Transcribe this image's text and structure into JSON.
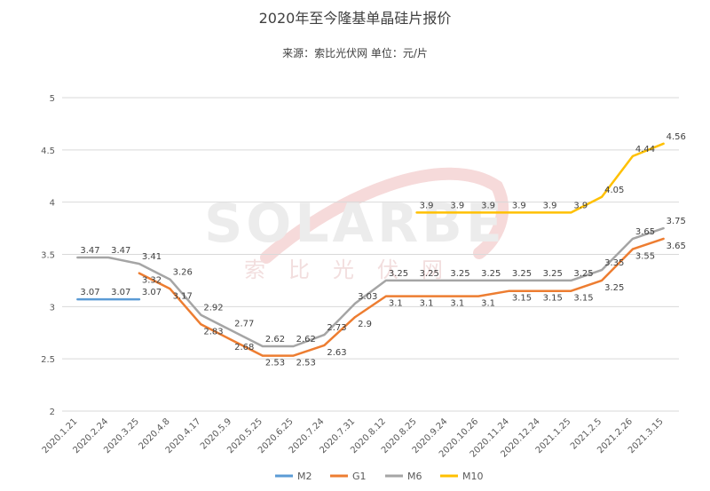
{
  "chart_data": {
    "type": "line",
    "title": "2020年至今隆基单晶硅片报价",
    "subtitle": "来源：索比光伏网  单位：元/片",
    "watermark": {
      "main": "SOLARBE",
      "sub": "索比光伏网"
    },
    "ylim": [
      2,
      5
    ],
    "yticks": [
      "2",
      "2.5",
      "3",
      "3.5",
      "4",
      "4.5",
      "5"
    ],
    "categories": [
      "2020.1.21",
      "2020.2.24",
      "2020.3.25",
      "2020.4.8",
      "2020.4.17",
      "2020.5.9",
      "2020.5.25",
      "2020.6.25",
      "2020.7.24",
      "2020.7.31",
      "2020.8.12",
      "2020.8.25",
      "2020.9.24",
      "2020.10.26",
      "2020.11.24",
      "2020.12.24",
      "2021.1.25",
      "2021.2.5",
      "2021.2.26",
      "2021.3.15"
    ],
    "series": [
      {
        "name": "M2",
        "color": "#5b9bd5",
        "values": [
          3.07,
          3.07,
          3.07,
          null,
          null,
          null,
          null,
          null,
          null,
          null,
          null,
          null,
          null,
          null,
          null,
          null,
          null,
          null,
          null,
          null
        ],
        "labels": [
          "3.07",
          "3.07",
          "3.07",
          null,
          null,
          null,
          null,
          null,
          null,
          null,
          null,
          null,
          null,
          null,
          null,
          null,
          null,
          null,
          null,
          null
        ]
      },
      {
        "name": "G1",
        "color": "#ed7d31",
        "values": [
          null,
          null,
          3.32,
          3.17,
          2.83,
          2.68,
          2.53,
          2.53,
          2.63,
          2.9,
          3.1,
          3.1,
          3.1,
          3.1,
          3.15,
          3.15,
          3.15,
          3.25,
          3.55,
          3.65
        ],
        "labels": [
          null,
          null,
          "3.32",
          "3.17",
          "2.83",
          "2.68",
          "2.53",
          "2.53",
          "2.63",
          "2.9",
          "3.1",
          "3.1",
          "3.1",
          "3.1",
          "3.15",
          "3.15",
          "3.15",
          "3.25",
          "3.55",
          "3.65"
        ]
      },
      {
        "name": "M6",
        "color": "#a5a5a5",
        "values": [
          3.47,
          3.47,
          3.41,
          3.26,
          2.92,
          2.77,
          2.62,
          2.62,
          2.73,
          3.03,
          3.25,
          3.25,
          3.25,
          3.25,
          3.25,
          3.25,
          3.25,
          3.35,
          3.65,
          3.75
        ],
        "labels": [
          "3.47",
          "3.47",
          "3.41",
          "3.26",
          "2.92",
          "2.77",
          "2.62",
          "2.62",
          "2.73",
          "3.03",
          "3.25",
          "3.25",
          "3.25",
          "3.25",
          "3.25",
          "3.25",
          "3.25",
          "3.35",
          "3.65",
          "3.75"
        ]
      },
      {
        "name": "M10",
        "color": "#ffc000",
        "values": [
          null,
          null,
          null,
          null,
          null,
          null,
          null,
          null,
          null,
          null,
          null,
          3.9,
          3.9,
          3.9,
          3.9,
          3.9,
          3.9,
          4.05,
          4.44,
          4.56
        ],
        "labels": [
          null,
          null,
          null,
          null,
          null,
          null,
          null,
          null,
          null,
          null,
          null,
          "3.9",
          "3.9",
          "3.9",
          "3.9",
          "3.9",
          "3.9",
          "4.05",
          "4.44",
          "4.56"
        ]
      }
    ],
    "legend_position": "bottom",
    "grid": true
  }
}
